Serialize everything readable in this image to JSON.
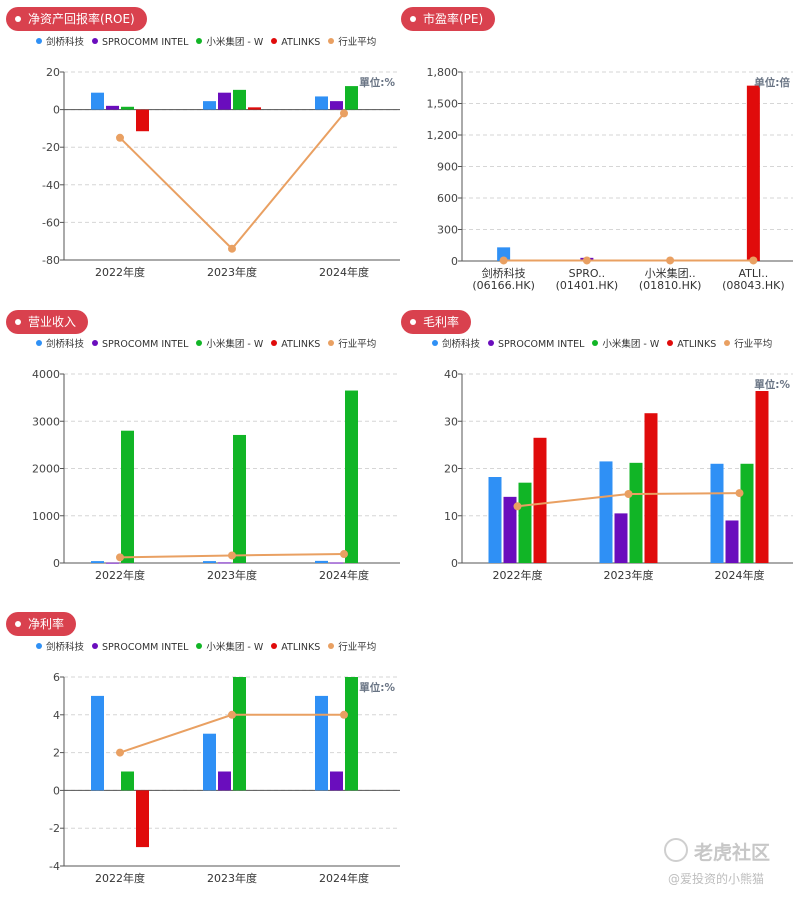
{
  "legend": [
    {
      "name": "剑桥科技",
      "color": "#2f90f5"
    },
    {
      "name": "SPROCOMM INTEL",
      "color": "#6a0dbd"
    },
    {
      "name": "小米集团 - W",
      "color": "#11b526"
    },
    {
      "name": "ATLINKS",
      "color": "#e00b0b"
    },
    {
      "name": "行业平均",
      "color": "#e9a062"
    }
  ],
  "watermark": {
    "brand": "老虎社区",
    "sub": "@爱投资的小熊猫"
  },
  "chart_data": [
    {
      "id": "roe",
      "type": "bar",
      "title": "净资产回报率(ROE)",
      "unit": "單位:%",
      "categories": [
        "2022年度",
        "2023年度",
        "2024年度"
      ],
      "ylim": [
        -80,
        20
      ],
      "yticks": [
        -80,
        -60,
        -40,
        -20,
        0,
        20
      ],
      "grid": true,
      "series": [
        {
          "name": "剑桥科技",
          "values": [
            9,
            4.5,
            7
          ]
        },
        {
          "name": "SPROCOMM INTEL",
          "values": [
            2,
            9,
            4.5
          ]
        },
        {
          "name": "小米集团 - W",
          "values": [
            1.5,
            10.5,
            12.5
          ]
        },
        {
          "name": "ATLINKS",
          "values": [
            -11.5,
            1.2,
            0
          ]
        }
      ],
      "average": {
        "name": "行业平均",
        "values": [
          -15,
          -74,
          -2
        ]
      }
    },
    {
      "id": "pe",
      "type": "bar",
      "title": "市盈率(PE)",
      "unit": "单位:倍",
      "categories": [
        "剑桥科技\n(06166.HK)",
        "SPRO..\n(01401.HK)",
        "小米集团..\n(01810.HK)",
        "ATLI..\n(08043.HK)"
      ],
      "ylim": [
        0,
        1800
      ],
      "yticks": [
        0,
        300,
        600,
        900,
        1200,
        1500,
        1800
      ],
      "ytick_labels": [
        "0",
        "300",
        "600",
        "900",
        "1,200",
        "1,500",
        "1,800"
      ],
      "grid": true,
      "series": [
        {
          "name": "PE",
          "values": [
            130,
            30,
            5,
            1670
          ],
          "colors": [
            "#2f90f5",
            "#6a0dbd",
            "#11b526",
            "#e00b0b"
          ]
        }
      ],
      "average": {
        "name": "行业平均",
        "values": [
          5,
          5,
          5,
          5
        ]
      }
    },
    {
      "id": "revenue",
      "type": "bar",
      "title": "营业收入",
      "unit": "",
      "categories": [
        "2022年度",
        "2023年度",
        "2024年度"
      ],
      "ylim": [
        0,
        4000
      ],
      "yticks": [
        0,
        1000,
        2000,
        3000,
        4000
      ],
      "grid": true,
      "series": [
        {
          "name": "剑桥科技",
          "values": [
            40,
            40,
            45
          ]
        },
        {
          "name": "SPROCOMM INTEL",
          "values": [
            8,
            12,
            10
          ]
        },
        {
          "name": "小米集团 - W",
          "values": [
            2800,
            2710,
            3650
          ]
        },
        {
          "name": "ATLINKS",
          "values": [
            0,
            0,
            0
          ]
        }
      ],
      "average": {
        "name": "行业平均",
        "values": [
          120,
          160,
          190
        ]
      }
    },
    {
      "id": "gross",
      "type": "bar",
      "title": "毛利率",
      "unit": "單位:%",
      "categories": [
        "2022年度",
        "2023年度",
        "2024年度"
      ],
      "ylim": [
        0,
        40
      ],
      "yticks": [
        0,
        10,
        20,
        30,
        40
      ],
      "grid": true,
      "series": [
        {
          "name": "剑桥科技",
          "values": [
            18.2,
            21.5,
            21
          ]
        },
        {
          "name": "SPROCOMM INTEL",
          "values": [
            14,
            10.5,
            9
          ]
        },
        {
          "name": "小米集团 - W",
          "values": [
            17,
            21.2,
            21
          ]
        },
        {
          "name": "ATLINKS",
          "values": [
            26.5,
            31.7,
            36.4
          ]
        }
      ],
      "average": {
        "name": "行业平均",
        "values": [
          12,
          14.6,
          14.8
        ]
      }
    },
    {
      "id": "net",
      "type": "bar",
      "title": "净利率",
      "unit": "單位:%",
      "categories": [
        "2022年度",
        "2023年度",
        "2024年度"
      ],
      "ylim": [
        -4,
        6
      ],
      "yticks": [
        -4,
        -2,
        0,
        2,
        4,
        6
      ],
      "grid": true,
      "series": [
        {
          "name": "剑桥科技",
          "values": [
            5,
            3,
            5
          ]
        },
        {
          "name": "SPROCOMM INTEL",
          "values": [
            0,
            1,
            1
          ]
        },
        {
          "name": "小米集团 - W",
          "values": [
            1,
            6,
            6
          ]
        },
        {
          "name": "ATLINKS",
          "values": [
            -3,
            0,
            0
          ]
        }
      ],
      "average": {
        "name": "行业平均",
        "values": [
          2,
          4,
          4
        ]
      }
    }
  ]
}
